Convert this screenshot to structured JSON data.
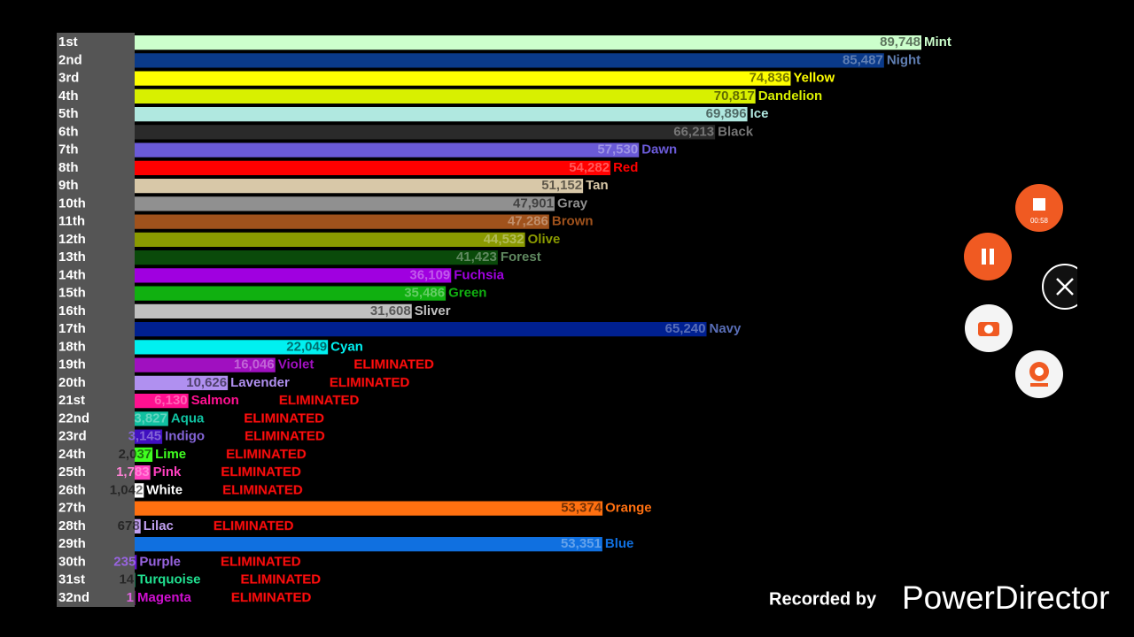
{
  "chart_data": {
    "type": "bar",
    "orientation": "horizontal",
    "categories": [
      "1st",
      "2nd",
      "3rd",
      "4th",
      "5th",
      "6th",
      "7th",
      "8th",
      "9th",
      "10th",
      "11th",
      "12th",
      "13th",
      "14th",
      "15th",
      "16th",
      "17th",
      "18th",
      "19th",
      "20th",
      "21st",
      "22nd",
      "23rd",
      "24th",
      "25th",
      "26th",
      "27th",
      "28th",
      "29th",
      "30th",
      "31st",
      "32nd"
    ],
    "names": [
      "Mint",
      "Night",
      "Yellow",
      "Dandelion",
      "Ice",
      "Black",
      "Dawn",
      "Red",
      "Tan",
      "Gray",
      "Brown",
      "Olive",
      "Forest",
      "Fuchsia",
      "Green",
      "Sliver",
      "Navy",
      "Cyan",
      "Violet",
      "Lavender",
      "Salmon",
      "Aqua",
      "Indigo",
      "Lime",
      "Pink",
      "White",
      "Orange",
      "Lilac",
      "Blue",
      "Purple",
      "Turquoise",
      "Magenta"
    ],
    "values": [
      89748,
      85487,
      74836,
      70817,
      69896,
      66213,
      57530,
      54282,
      51152,
      47901,
      47286,
      44532,
      41423,
      36109,
      35486,
      31608,
      65240,
      22049,
      16046,
      10626,
      6130,
      3827,
      3145,
      2037,
      1783,
      1042,
      53374,
      678,
      53351,
      235,
      14,
      1
    ],
    "value_labels": [
      "89,748",
      "85,487",
      "74,836",
      "70,817",
      "69,896",
      "66,213",
      "57,530",
      "54,282",
      "51,152",
      "47,901",
      "47,286",
      "44,532",
      "41,423",
      "36,109",
      "35,486",
      "31,608",
      "65,240",
      "22,049",
      "16,046",
      "10,626",
      "6,130",
      "3,827",
      "3,145",
      "2,037",
      "1,783",
      "1,042",
      "53,374",
      "678",
      "53,351",
      "235",
      "14",
      "1"
    ],
    "colors": [
      "#ccffcc",
      "#0a3a8a",
      "#ffff00",
      "#d8f000",
      "#b0e8e0",
      "#2a2a2a",
      "#6a5ad8",
      "#ff0000",
      "#d8c8a8",
      "#909090",
      "#a0521c",
      "#8a9a00",
      "#0a4a0a",
      "#a000e0",
      "#10b010",
      "#c0c0c0",
      "#002090",
      "#00f0f0",
      "#a010c0",
      "#b090f0",
      "#ff1090",
      "#10c0a0",
      "#4010c0",
      "#40ff20",
      "#ff40c0",
      "#ffffff",
      "#ff7010",
      "#c0a0f0",
      "#1070e0",
      "#6010d0",
      "#20e090",
      "#d010d0"
    ],
    "status": [
      null,
      null,
      null,
      null,
      null,
      null,
      null,
      null,
      null,
      null,
      null,
      null,
      null,
      null,
      null,
      null,
      null,
      null,
      "ELIMINATED",
      "ELIMINATED",
      "ELIMINATED",
      "ELIMINATED",
      "ELIMINATED",
      "ELIMINATED",
      "ELIMINATED",
      "ELIMINATED",
      null,
      "ELIMINATED",
      null,
      "ELIMINATED",
      "ELIMINATED",
      "ELIMINATED"
    ]
  },
  "overlay": {
    "recorder_time": "00:58",
    "watermark_prefix": "Recorded by",
    "watermark_brand": "PowerDirector"
  }
}
